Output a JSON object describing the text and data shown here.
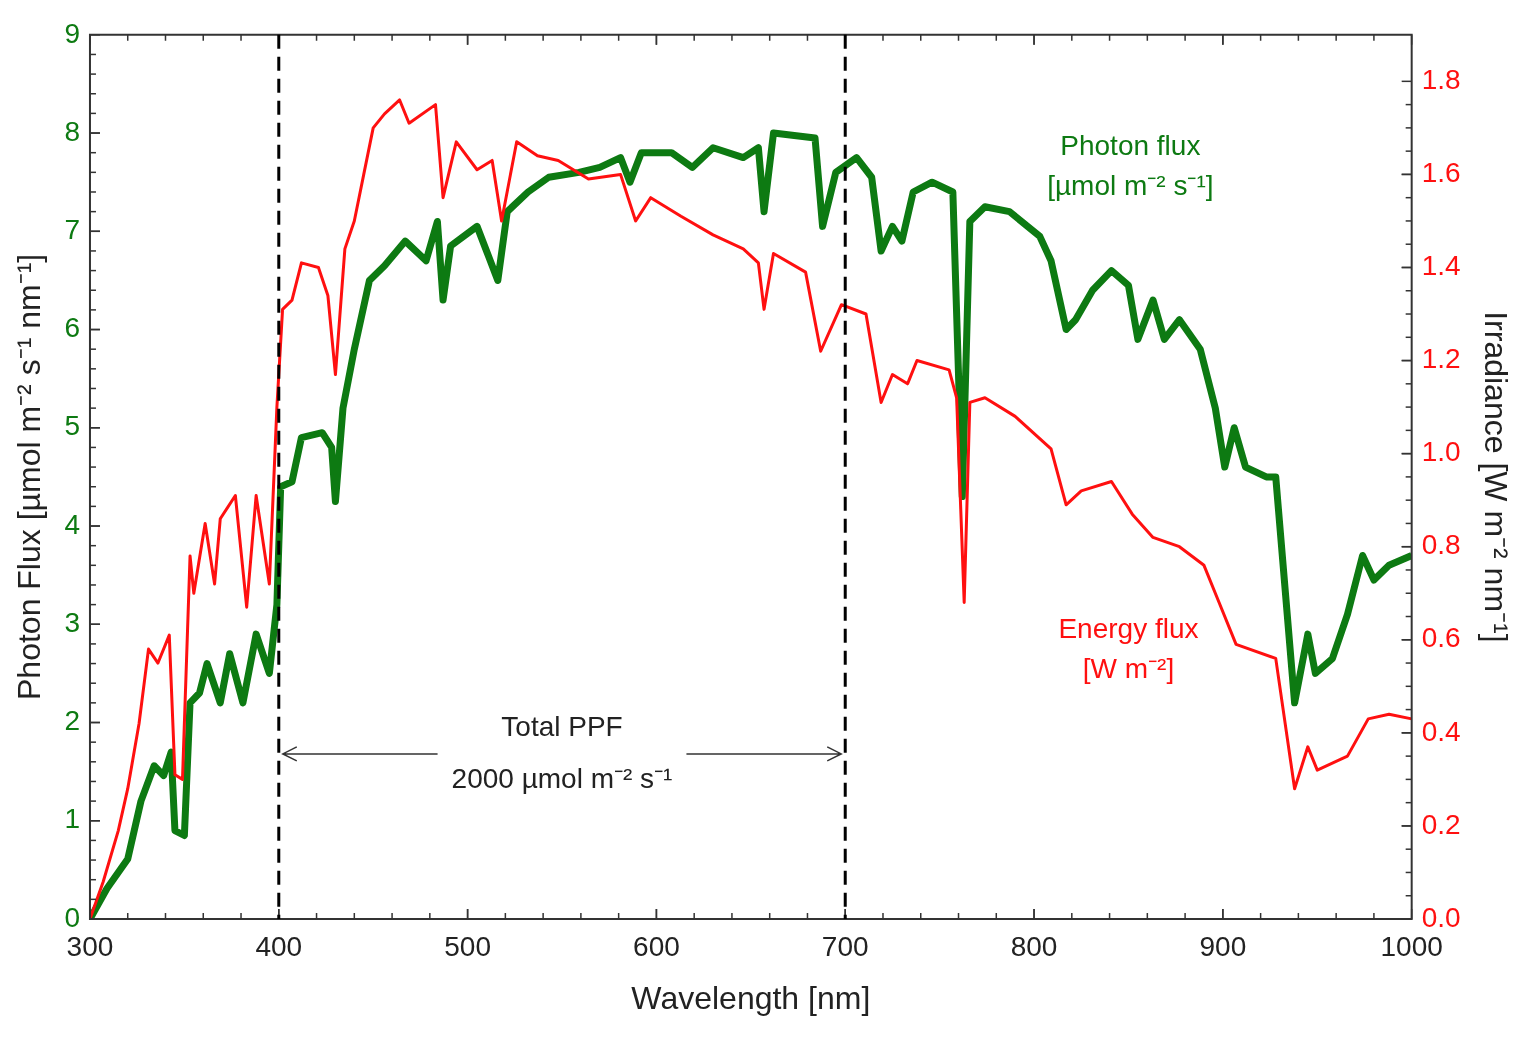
{
  "chart_data": {
    "type": "line",
    "xlabel": "Wavelength [nm]",
    "ylabel": "Photon Flux [µmol m⁻² s⁻¹ nm⁻¹]",
    "y2label": "Irradiance [W m⁻² nm⁻¹]",
    "xlim": [
      300,
      1000
    ],
    "xticks": [
      300,
      400,
      500,
      600,
      700,
      800,
      900,
      1000
    ],
    "ylim": [
      0,
      9
    ],
    "yticks": [
      0,
      1,
      2,
      3,
      4,
      5,
      6,
      7,
      8,
      9
    ],
    "y2lim": [
      0,
      1.9
    ],
    "y2ticks": [
      {
        "value": 0,
        "label": "0.0"
      },
      {
        "value": 0.2,
        "label": "0.2"
      },
      {
        "value": 0.4,
        "label": "0.4"
      },
      {
        "value": 0.6,
        "label": "0.6"
      },
      {
        "value": 0.8,
        "label": "0.8"
      },
      {
        "value": 1,
        "label": "1.0"
      },
      {
        "value": 1.2,
        "label": "1.2"
      },
      {
        "value": 1.4,
        "label": "1.4"
      },
      {
        "value": 1.6,
        "label": "1.6"
      },
      {
        "value": 1.8,
        "label": "1.8"
      }
    ],
    "grid": false,
    "legend": false,
    "marker": "none",
    "line_style": "solid",
    "ref_lines": [
      {
        "axis": "x",
        "value": 400,
        "color": "#000000",
        "line_style": "dashed"
      },
      {
        "axis": "x",
        "value": 700,
        "color": "#000000",
        "line_style": "dashed"
      }
    ],
    "annotations": [
      "Total PPF",
      {
        "text": "2000 µmol m⁻² s⁻¹",
        "x": 700,
        "y": 1.68
      }
    ],
    "series": [
      {
        "name": "Photon flux [µmol m⁻² s⁻¹]",
        "color": "#0d7a12",
        "axis": "y",
        "x": [
          300,
          309,
          320,
          327,
          334,
          339,
          343,
          345,
          350,
          353,
          358,
          362,
          369,
          374,
          381,
          388,
          395,
          399,
          401,
          407,
          412,
          423,
          428,
          430,
          434,
          440,
          448,
          456,
          467,
          478,
          484,
          487,
          491,
          505,
          511,
          516,
          521,
          532,
          543,
          559,
          570,
          581,
          586,
          592,
          608,
          619,
          630,
          646,
          654,
          657,
          662,
          684,
          688,
          695,
          706,
          714,
          719,
          725,
          730,
          736,
          746,
          757,
          762,
          766,
          774,
          787,
          803,
          809,
          817,
          822,
          831,
          841,
          850,
          855,
          863,
          869,
          877,
          888,
          896,
          901,
          906,
          912,
          923,
          928,
          938,
          945,
          949,
          958,
          966,
          974,
          980,
          988,
          1000
        ],
        "values": [
          0,
          0.31,
          0.61,
          1.2,
          1.56,
          1.46,
          1.7,
          0.9,
          0.85,
          2.2,
          2.3,
          2.6,
          2.2,
          2.7,
          2.2,
          2.9,
          2.5,
          3.2,
          4.4,
          4.45,
          4.9,
          4.95,
          4.8,
          4.25,
          5.2,
          5.8,
          6.5,
          6.65,
          6.9,
          6.7,
          7.1,
          6.3,
          6.85,
          7.05,
          6.75,
          6.5,
          7.2,
          7.4,
          7.55,
          7.6,
          7.65,
          7.75,
          7.5,
          7.8,
          7.8,
          7.65,
          7.85,
          7.75,
          7.85,
          7.2,
          8.0,
          7.95,
          7.05,
          7.6,
          7.75,
          7.55,
          6.8,
          7.05,
          6.9,
          7.4,
          7.5,
          7.4,
          4.3,
          7.1,
          7.25,
          7.2,
          6.95,
          6.7,
          6.0,
          6.1,
          6.4,
          6.6,
          6.45,
          5.9,
          6.3,
          5.9,
          6.1,
          5.8,
          5.2,
          4.6,
          5.0,
          4.6,
          4.5,
          4.5,
          2.2,
          2.9,
          2.5,
          2.65,
          3.1,
          3.7,
          3.45,
          3.6,
          3.7
        ]
      },
      {
        "name": "Energy flux [W m⁻²]",
        "color": "#ff1010",
        "axis": "y2",
        "x": [
          300,
          307,
          315,
          320,
          326,
          331,
          336,
          342,
          345,
          349,
          353,
          355,
          361,
          366,
          369,
          377,
          383,
          388,
          395,
          399,
          402,
          407,
          412,
          421,
          426,
          430,
          435,
          440,
          445,
          450,
          456,
          464,
          469,
          483,
          487,
          494,
          505,
          513,
          518,
          526,
          537,
          548,
          564,
          581,
          589,
          597,
          613,
          630,
          646,
          654,
          657,
          662,
          679,
          687,
          698,
          711,
          719,
          725,
          733,
          738,
          755,
          759,
          763,
          766,
          774,
          790,
          809,
          817,
          825,
          841,
          852,
          863,
          877,
          890,
          898,
          907,
          928,
          938,
          945,
          950,
          966,
          977,
          988,
          1000
        ],
        "values": [
          0,
          0.08,
          0.19,
          0.28,
          0.42,
          0.58,
          0.55,
          0.61,
          0.31,
          0.3,
          0.78,
          0.7,
          0.85,
          0.72,
          0.86,
          0.91,
          0.67,
          0.91,
          0.72,
          1.1,
          1.31,
          1.33,
          1.41,
          1.4,
          1.34,
          1.17,
          1.44,
          1.5,
          1.6,
          1.7,
          1.73,
          1.76,
          1.71,
          1.75,
          1.55,
          1.67,
          1.61,
          1.63,
          1.5,
          1.67,
          1.64,
          1.63,
          1.59,
          1.6,
          1.5,
          1.55,
          1.51,
          1.47,
          1.44,
          1.41,
          1.31,
          1.43,
          1.39,
          1.22,
          1.32,
          1.3,
          1.11,
          1.17,
          1.15,
          1.2,
          1.18,
          1.12,
          0.68,
          1.11,
          1.12,
          1.08,
          1.01,
          0.89,
          0.92,
          0.94,
          0.87,
          0.82,
          0.8,
          0.76,
          0.68,
          0.59,
          0.56,
          0.28,
          0.37,
          0.32,
          0.35,
          0.43,
          0.44,
          0.43
        ]
      }
    ]
  }
}
